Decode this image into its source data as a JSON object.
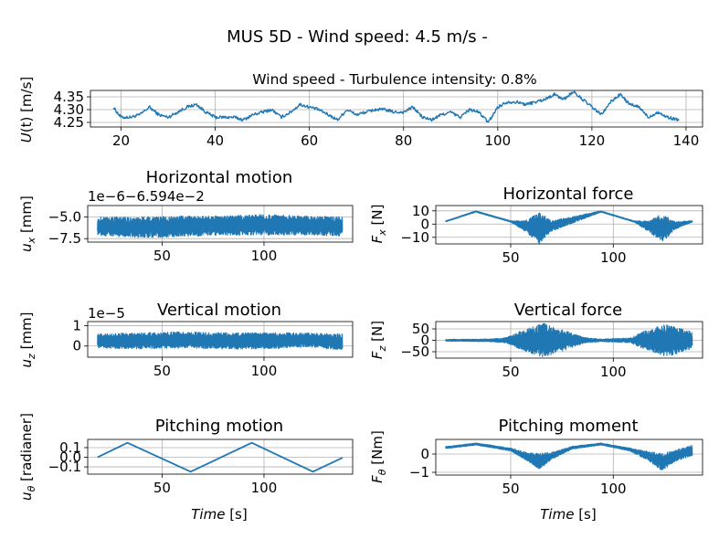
{
  "figure": {
    "title": "MUS 5D - Wind speed: 4.5 m/s -",
    "series_color": "#1f77b4"
  },
  "chart_data": [
    {
      "id": "wind",
      "type": "line",
      "title": "Wind speed - Turbulence intensity: 0.8%",
      "ylabel": "U(t) [m/s]",
      "xlim": [
        13.5,
        143.5
      ],
      "ylim": [
        4.232,
        4.375
      ],
      "xticks": [
        20,
        40,
        60,
        80,
        100,
        120,
        140
      ],
      "xtick_labels": [
        "20",
        "40",
        "60",
        "80",
        "100",
        "120",
        "140"
      ],
      "yticks": [
        4.25,
        4.3,
        4.35
      ],
      "ytick_labels": [
        "4.25",
        "4.30",
        "4.35"
      ],
      "grid": true,
      "x": [
        18.3,
        20,
        22,
        24,
        26,
        28,
        30,
        32,
        34,
        36,
        38,
        40,
        42,
        44,
        46,
        48,
        50,
        52,
        54,
        56,
        58,
        60,
        62,
        64,
        66,
        68,
        70,
        72,
        74,
        76,
        78,
        80,
        82,
        84,
        86,
        88,
        90,
        92,
        94,
        96,
        98,
        100,
        102,
        104,
        106,
        108,
        110,
        112,
        114,
        116,
        118,
        120,
        122,
        124,
        126,
        128,
        130,
        132,
        134,
        136,
        138.5
      ],
      "y": [
        4.31,
        4.27,
        4.27,
        4.28,
        4.31,
        4.28,
        4.27,
        4.29,
        4.31,
        4.32,
        4.29,
        4.27,
        4.27,
        4.27,
        4.26,
        4.28,
        4.29,
        4.3,
        4.27,
        4.29,
        4.32,
        4.31,
        4.3,
        4.28,
        4.26,
        4.3,
        4.28,
        4.29,
        4.3,
        4.3,
        4.29,
        4.29,
        4.31,
        4.27,
        4.26,
        4.28,
        4.29,
        4.27,
        4.3,
        4.29,
        4.25,
        4.31,
        4.33,
        4.33,
        4.32,
        4.33,
        4.34,
        4.36,
        4.34,
        4.37,
        4.34,
        4.31,
        4.28,
        4.33,
        4.36,
        4.32,
        4.31,
        4.27,
        4.29,
        4.27,
        4.26
      ],
      "noise": 0.012
    },
    {
      "id": "hmotion",
      "type": "line",
      "title": "Horizontal motion",
      "ylabel": "u_x [mm]",
      "offset_text": "1e−6−6.594e−2",
      "xlim": [
        13.5,
        143.5
      ],
      "ylim": [
        -7.9,
        -3.7
      ],
      "xticks": [
        50,
        100
      ],
      "xtick_labels": [
        "50",
        "100"
      ],
      "yticks": [
        -5.0,
        -7.5
      ],
      "ytick_labels": [
        "−5.0",
        "−7.5"
      ],
      "grid": true,
      "x": [
        18.3,
        40,
        60,
        80,
        100,
        120,
        138.5
      ],
      "y_center": [
        -6.1,
        -6.2,
        -6.1,
        -6.0,
        -5.9,
        -6.0,
        -6.1
      ],
      "band_halfwidth": [
        1.1,
        1.2,
        1.2,
        1.1,
        1.2,
        1.1,
        1.1
      ]
    },
    {
      "id": "hforce",
      "type": "line",
      "title": "Horizontal force",
      "ylabel": "F_x [N]",
      "xlim": [
        13.5,
        143.5
      ],
      "ylim": [
        -15,
        14
      ],
      "xticks": [
        50,
        100
      ],
      "xtick_labels": [
        "50",
        "100"
      ],
      "yticks": [
        10,
        0,
        -10
      ],
      "ytick_labels": [
        "10",
        "0",
        "−10"
      ],
      "grid": true,
      "x": [
        18.3,
        33,
        50,
        57,
        64,
        70,
        94,
        110,
        117,
        124,
        130,
        138.5
      ],
      "y_center": [
        2,
        9.5,
        2,
        -1.5,
        -3,
        -1.5,
        9.5,
        2,
        -1.5,
        -3,
        -1,
        2
      ],
      "band_halfwidth": [
        0.4,
        0.5,
        0.5,
        4,
        12,
        4,
        0.5,
        0.5,
        4,
        11,
        3,
        0.5
      ]
    },
    {
      "id": "vmotion",
      "type": "line",
      "title": "Vertical motion",
      "ylabel": "u_z [mm]",
      "offset_text": "1e−5",
      "xlim": [
        13.5,
        143.5
      ],
      "ylim": [
        -0.55,
        1.2
      ],
      "xticks": [
        50,
        100
      ],
      "xtick_labels": [
        "50",
        "100"
      ],
      "yticks": [
        1,
        0
      ],
      "ytick_labels": [
        "1",
        "0"
      ],
      "grid": true,
      "x": [
        18.3,
        40,
        60,
        80,
        100,
        120,
        138.5
      ],
      "y_center": [
        0.25,
        0.25,
        0.3,
        0.25,
        0.25,
        0.3,
        0.2
      ],
      "band_halfwidth": [
        0.35,
        0.4,
        0.4,
        0.4,
        0.4,
        0.35,
        0.4
      ]
    },
    {
      "id": "vforce",
      "type": "line",
      "title": "Vertical force",
      "ylabel": "F_z [N]",
      "xlim": [
        13.5,
        143.5
      ],
      "ylim": [
        -78,
        82
      ],
      "xticks": [
        50,
        100
      ],
      "xtick_labels": [
        "50",
        "100"
      ],
      "yticks": [
        50,
        0,
        -50
      ],
      "ytick_labels": [
        "50",
        "0",
        "−50"
      ],
      "grid": true,
      "x": [
        18.3,
        40,
        48,
        56,
        66,
        76,
        86,
        94,
        108,
        115,
        126,
        136,
        138.5
      ],
      "y_center": [
        0,
        0,
        0,
        0,
        0,
        0,
        0,
        0,
        0,
        0,
        0,
        0,
        0
      ],
      "band_halfwidth": [
        4,
        6,
        12,
        45,
        75,
        45,
        12,
        6,
        10,
        40,
        72,
        45,
        35
      ]
    },
    {
      "id": "pmotion",
      "type": "line",
      "title": "Pitching motion",
      "ylabel": "u_θ [radianer]",
      "xlim": [
        13.5,
        143.5
      ],
      "ylim": [
        -0.175,
        0.185
      ],
      "xticks": [
        50,
        100
      ],
      "xtick_labels": [
        "50",
        "100"
      ],
      "yticks": [
        0.1,
        0.0,
        -0.1
      ],
      "ytick_labels": [
        "0.1",
        "0.0",
        "−0.1"
      ],
      "grid": true,
      "x": [
        18.3,
        33,
        64,
        94,
        124,
        138.5
      ],
      "y": [
        0.0,
        0.15,
        -0.15,
        0.15,
        -0.15,
        -0.005
      ]
    },
    {
      "id": "pmoment",
      "type": "line",
      "title": "Pitching moment",
      "ylabel": "F_θ [Nm]",
      "xlim": [
        13.5,
        143.5
      ],
      "ylim": [
        -1.15,
        0.8
      ],
      "xticks": [
        50,
        100
      ],
      "xtick_labels": [
        "50",
        "100"
      ],
      "yticks": [
        0,
        -1
      ],
      "ytick_labels": [
        "0",
        "−1"
      ],
      "grid": true,
      "x": [
        18.3,
        33,
        50,
        57,
        64,
        70,
        80,
        94,
        108,
        117,
        124,
        130,
        138.5
      ],
      "y_center": [
        0.35,
        0.55,
        0.25,
        -0.1,
        -0.4,
        -0.1,
        0.35,
        0.55,
        0.25,
        -0.1,
        -0.45,
        -0.1,
        0.2
      ],
      "band_halfwidth": [
        0.06,
        0.06,
        0.08,
        0.2,
        0.45,
        0.2,
        0.08,
        0.06,
        0.08,
        0.25,
        0.5,
        0.3,
        0.3
      ]
    }
  ],
  "xlabel_bottom": "Time [s]"
}
